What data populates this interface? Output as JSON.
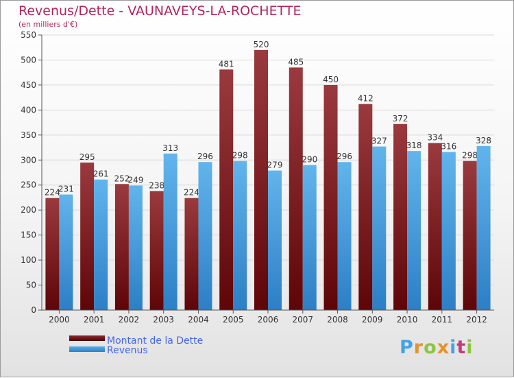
{
  "title": "Revenus/Dette - VAUNAVEYS-LA-ROCHETTE",
  "subtitle": "(en milliers d'€)",
  "colors": {
    "title": "#b3245a",
    "dette": "#7a1a1e",
    "revenus": "#3b97dd",
    "legend_text": "#4466ee"
  },
  "legend": {
    "dette_label": "Montant de la Dette",
    "revenus_label": "Revenus"
  },
  "logo": {
    "text": "Proxiti"
  },
  "chart_data": {
    "type": "bar",
    "categories": [
      "2000",
      "2001",
      "2002",
      "2003",
      "2004",
      "2005",
      "2006",
      "2007",
      "2008",
      "2009",
      "2010",
      "2011",
      "2012"
    ],
    "series": [
      {
        "name": "Montant de la Dette",
        "values": [
          224,
          295,
          252,
          238,
          224,
          481,
          520,
          485,
          450,
          412,
          372,
          334,
          298
        ]
      },
      {
        "name": "Revenus",
        "values": [
          231,
          261,
          249,
          313,
          296,
          298,
          279,
          290,
          296,
          327,
          318,
          316,
          328
        ]
      }
    ],
    "ylim": [
      0,
      550
    ],
    "yticks": [
      0,
      50,
      100,
      150,
      200,
      250,
      300,
      350,
      400,
      450,
      500,
      550
    ],
    "grid": true,
    "legend_position": "bottom-left"
  }
}
